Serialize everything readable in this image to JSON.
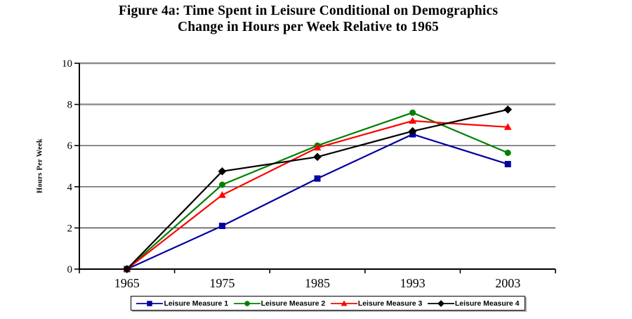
{
  "figure": {
    "title_line1": "Figure 4a: Time Spent in Leisure Conditional on Demographics",
    "title_line2": "Change in Hours per Week Relative to 1965"
  },
  "chart_data": {
    "type": "line",
    "categories": [
      "1965",
      "1975",
      "1985",
      "1993",
      "2003"
    ],
    "series": [
      {
        "name": "Leisure Measure 1",
        "color": "#0000A0",
        "marker": "square",
        "values": [
          0,
          2.1,
          4.4,
          6.55,
          5.1
        ]
      },
      {
        "name": "Leisure Measure 2",
        "color": "#008000",
        "marker": "circle",
        "values": [
          0,
          4.1,
          6.0,
          7.6,
          5.65
        ]
      },
      {
        "name": "Leisure Measure 3",
        "color": "#FF0000",
        "marker": "triangle",
        "values": [
          0,
          3.6,
          5.9,
          7.2,
          6.9
        ]
      },
      {
        "name": "Leisure Measure 4",
        "color": "#000000",
        "marker": "diamond",
        "values": [
          0,
          4.75,
          5.45,
          6.7,
          7.75
        ]
      }
    ],
    "xlabel": "",
    "ylabel": "Hours Per Week",
    "ylim": [
      0,
      10
    ],
    "yticks": [
      0,
      2,
      4,
      6,
      8,
      10
    ],
    "grid": true,
    "legend_position": "bottom",
    "colors": {
      "axis": "#000000",
      "gridline_major_top": "#8c8c8c",
      "gridline": "#333333",
      "background": "#ffffff"
    }
  }
}
